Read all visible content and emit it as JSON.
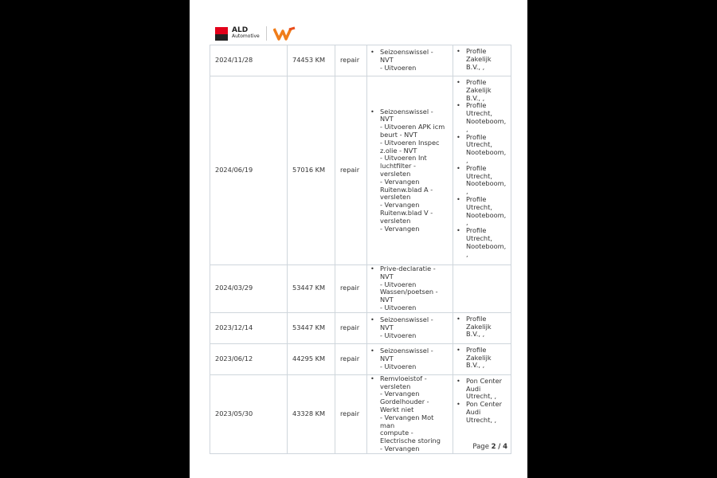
{
  "header": {
    "logo_text": "ALD Automotive",
    "logo_line1": "ALD",
    "logo_line2": "Automotive"
  },
  "rows": [
    {
      "date": "2024/11/28",
      "km": "74453 KM",
      "type": "repair",
      "desc": [
        "  Seizoenswissel  -\nNVT\n- Uitvoeren"
      ],
      "loc": [
        "  Profile\nZakelijk\nB.V., ,"
      ]
    },
    {
      "date": "2024/06/19",
      "km": "57016 KM",
      "type": "repair",
      "desc": [
        "  Seizoenswissel  -\nNVT\n- Uitvoeren  APK icm\nbeurt    - NVT\n- Uitvoeren  Inspec\nz.olie   - NVT\n- Uitvoeren  Int\nluchtfilter  - versleten\n- Vervangen\nRuitenw.blad A   -\nversleten\n- Vervangen\nRuitenw.blad V   -\nversleten\n- Vervangen"
      ],
      "loc": [
        "  Profile\nZakelijk\nB.V., ,",
        "  Profile\nUtrecht,\nNooteboom,\n,",
        "  Profile\nUtrecht,\nNooteboom,\n,",
        "  Profile\nUtrecht,\nNooteboom,\n,",
        "  Profile\nUtrecht,\nNooteboom,\n,",
        "  Profile\nUtrecht,\nNooteboom,\n,"
      ]
    },
    {
      "date": "2024/03/29",
      "km": "53447 KM",
      "type": "repair",
      "desc": [
        "  Prive-declaratie -\nNVT\n- Uitvoeren\nWassen/poetsen   -\nNVT\n- Uitvoeren"
      ],
      "loc": []
    },
    {
      "date": "2023/12/14",
      "km": "53447 KM",
      "type": "repair",
      "desc": [
        "  Seizoenswissel  -\nNVT\n- Uitvoeren"
      ],
      "loc": [
        "  Profile\nZakelijk\nB.V., ,"
      ]
    },
    {
      "date": "2023/06/12",
      "km": "44295 KM",
      "type": "repair",
      "desc": [
        "  Seizoenswissel  -\nNVT\n- Uitvoeren"
      ],
      "loc": [
        "  Profile\nZakelijk\nB.V., ,"
      ]
    },
    {
      "date": "2023/05/30",
      "km": "43328 KM",
      "type": "repair",
      "desc": [
        "  Remvloeistof   -\nversleten\n- Vervangen\nGordelhouder   -\nWerkt niet\n- Vervangen  Mot man\ncompute  -\nElectrische storing\n- Vervangen"
      ],
      "loc": [
        "  Pon Center\nAudi\nUtrecht, ,",
        "  Pon Center\nAudi\nUtrecht, ,"
      ]
    }
  ],
  "footer": {
    "page_label": "Page",
    "current_page": "2",
    "separator": "/",
    "total_pages": "4"
  }
}
